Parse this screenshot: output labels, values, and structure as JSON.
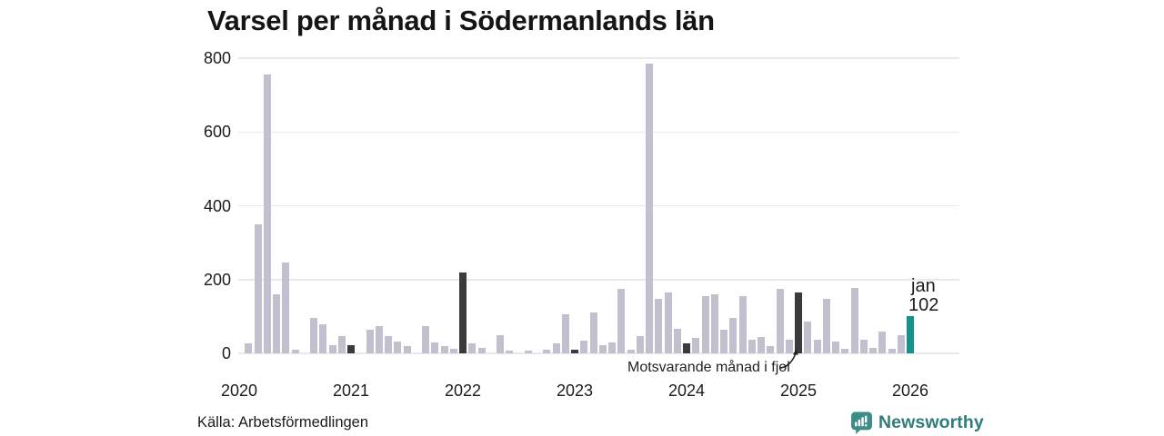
{
  "title": "Varsel per månad i Södermanlands län",
  "source": "Källa: Arbetsförmedlingen",
  "logo": {
    "text": "Newsworthy",
    "icon": "newsworthy-chart-bubble-icon"
  },
  "annotation": {
    "text": "Motsvarande månad i fjol",
    "target_month": "2025-01"
  },
  "current_label": {
    "line1": "jan",
    "line2": "102"
  },
  "colors": {
    "bar_default": "#c2c0ce",
    "bar_last_year_month": "#3b3a3c",
    "bar_current": "#12948a",
    "gridline": "#e8e8ee",
    "text": "#1c1c1c",
    "logo_teal": "#3d8c87",
    "logo_text_teal": "#2e7d7a"
  },
  "chart_data": {
    "type": "bar",
    "title": "Varsel per månad i Södermanlands län",
    "xlabel": "",
    "ylabel": "",
    "ylim": [
      0,
      800
    ],
    "yticks": [
      0,
      200,
      400,
      600,
      800
    ],
    "year_ticks": [
      "2020",
      "2021",
      "2022",
      "2023",
      "2024",
      "2025",
      "2026"
    ],
    "grid": true,
    "legend": "none",
    "highlight_note": "dark bars = Motsvarande månad i fjol (January of each year); teal bar = latest month jan 2026 = 102",
    "months": [
      {
        "m": "2020-01",
        "v": 0
      },
      {
        "m": "2020-02",
        "v": 27
      },
      {
        "m": "2020-03",
        "v": 350
      },
      {
        "m": "2020-04",
        "v": 755
      },
      {
        "m": "2020-05",
        "v": 160
      },
      {
        "m": "2020-06",
        "v": 245
      },
      {
        "m": "2020-07",
        "v": 9
      },
      {
        "m": "2020-08",
        "v": 0
      },
      {
        "m": "2020-09",
        "v": 97
      },
      {
        "m": "2020-10",
        "v": 78
      },
      {
        "m": "2020-11",
        "v": 21
      },
      {
        "m": "2020-12",
        "v": 48
      },
      {
        "m": "2021-01",
        "v": 23,
        "hl": "fjol"
      },
      {
        "m": "2021-02",
        "v": 0
      },
      {
        "m": "2021-03",
        "v": 63
      },
      {
        "m": "2021-04",
        "v": 73
      },
      {
        "m": "2021-05",
        "v": 47
      },
      {
        "m": "2021-06",
        "v": 32
      },
      {
        "m": "2021-07",
        "v": 20
      },
      {
        "m": "2021-08",
        "v": 0
      },
      {
        "m": "2021-09",
        "v": 75
      },
      {
        "m": "2021-10",
        "v": 29
      },
      {
        "m": "2021-11",
        "v": 20
      },
      {
        "m": "2021-12",
        "v": 12
      },
      {
        "m": "2022-01",
        "v": 220,
        "hl": "fjol"
      },
      {
        "m": "2022-02",
        "v": 27
      },
      {
        "m": "2022-03",
        "v": 15
      },
      {
        "m": "2022-04",
        "v": 0
      },
      {
        "m": "2022-05",
        "v": 49
      },
      {
        "m": "2022-06",
        "v": 7
      },
      {
        "m": "2022-07",
        "v": 0
      },
      {
        "m": "2022-08",
        "v": 7
      },
      {
        "m": "2022-09",
        "v": 0
      },
      {
        "m": "2022-10",
        "v": 11
      },
      {
        "m": "2022-11",
        "v": 27
      },
      {
        "m": "2022-12",
        "v": 105
      },
      {
        "m": "2023-01",
        "v": 11,
        "hl": "fjol"
      },
      {
        "m": "2023-02",
        "v": 35
      },
      {
        "m": "2023-03",
        "v": 110
      },
      {
        "m": "2023-04",
        "v": 21
      },
      {
        "m": "2023-05",
        "v": 29
      },
      {
        "m": "2023-06",
        "v": 175
      },
      {
        "m": "2023-07",
        "v": 11
      },
      {
        "m": "2023-08",
        "v": 46
      },
      {
        "m": "2023-09",
        "v": 785
      },
      {
        "m": "2023-10",
        "v": 148
      },
      {
        "m": "2023-11",
        "v": 165
      },
      {
        "m": "2023-12",
        "v": 67
      },
      {
        "m": "2024-01",
        "v": 27,
        "hl": "fjol"
      },
      {
        "m": "2024-02",
        "v": 42
      },
      {
        "m": "2024-03",
        "v": 155
      },
      {
        "m": "2024-04",
        "v": 160
      },
      {
        "m": "2024-05",
        "v": 65
      },
      {
        "m": "2024-06",
        "v": 95
      },
      {
        "m": "2024-07",
        "v": 155
      },
      {
        "m": "2024-08",
        "v": 36
      },
      {
        "m": "2024-09",
        "v": 45
      },
      {
        "m": "2024-10",
        "v": 20
      },
      {
        "m": "2024-11",
        "v": 174
      },
      {
        "m": "2024-12",
        "v": 36
      },
      {
        "m": "2025-01",
        "v": 165,
        "hl": "fjol"
      },
      {
        "m": "2025-02",
        "v": 85
      },
      {
        "m": "2025-03",
        "v": 36
      },
      {
        "m": "2025-04",
        "v": 148
      },
      {
        "m": "2025-05",
        "v": 31
      },
      {
        "m": "2025-06",
        "v": 12
      },
      {
        "m": "2025-07",
        "v": 177
      },
      {
        "m": "2025-08",
        "v": 36
      },
      {
        "m": "2025-09",
        "v": 15
      },
      {
        "m": "2025-10",
        "v": 60
      },
      {
        "m": "2025-11",
        "v": 13
      },
      {
        "m": "2025-12",
        "v": 50
      },
      {
        "m": "2026-01",
        "v": 102,
        "hl": "now"
      }
    ]
  }
}
